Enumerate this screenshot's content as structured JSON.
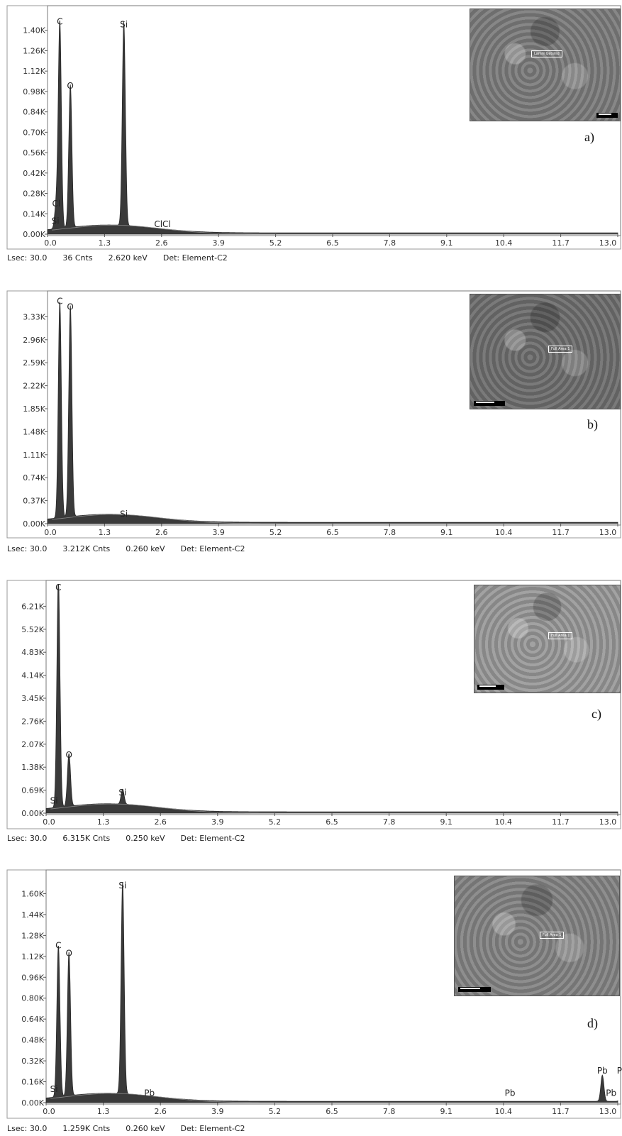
{
  "chart_data": [
    {
      "type": "line",
      "panel_label": "a)",
      "ylim": [
        0,
        1.54
      ],
      "y_ticks": [
        "0.00K",
        "0.14K",
        "0.28K",
        "0.42K",
        "0.56K",
        "0.70K",
        "0.84K",
        "0.98K",
        "1.12K",
        "1.26K",
        "1.40K"
      ],
      "x_ticks": [
        "0.0",
        "1.3",
        "2.6",
        "3.9",
        "5.2",
        "6.5",
        "7.8",
        "9.1",
        "10.4",
        "11.7",
        "13.0"
      ],
      "xlim": [
        0,
        13
      ],
      "peaks": [
        {
          "label": "Si",
          "x": 0.18,
          "y": 0.05
        },
        {
          "label": "Cl",
          "x": 0.2,
          "y": 0.17
        },
        {
          "label": "C",
          "x": 0.28,
          "y": 1.42
        },
        {
          "label": "O",
          "x": 0.52,
          "y": 0.98
        },
        {
          "label": "Si",
          "x": 1.74,
          "y": 1.4
        },
        {
          "label": "ClCl",
          "x": 2.62,
          "y": 0.03
        }
      ],
      "status": {
        "lsec": "Lsec: 30.0",
        "cnts": "36 Cnts",
        "kev": "2.620 keV",
        "det": "Det: Element-C2"
      },
      "inset": {
        "tag": "Lamm betsind",
        "bg": "#7d7d7d"
      }
    },
    {
      "type": "line",
      "panel_label": "b)",
      "ylim": [
        0,
        3.66
      ],
      "y_ticks": [
        "0.00K",
        "0.37K",
        "0.74K",
        "1.11K",
        "1.48K",
        "1.85K",
        "2.22K",
        "2.59K",
        "2.96K",
        "3.33K"
      ],
      "x_ticks": [
        "0.0",
        "1.3",
        "2.6",
        "3.9",
        "5.2",
        "6.5",
        "7.8",
        "9.1",
        "10.4",
        "11.7",
        "13.0"
      ],
      "xlim": [
        0,
        13
      ],
      "peaks": [
        {
          "label": "C",
          "x": 0.28,
          "y": 3.45
        },
        {
          "label": "O",
          "x": 0.52,
          "y": 3.36
        },
        {
          "label": "Si",
          "x": 1.74,
          "y": 0.06
        }
      ],
      "status": {
        "lsec": "Lsec: 30.0",
        "cnts": "3.212K Cnts",
        "kev": "0.260 keV",
        "det": "Det: Element-C2"
      },
      "inset": {
        "tag": "Full Area 1",
        "bg": "#6f6f6f"
      }
    },
    {
      "type": "line",
      "panel_label": "c)",
      "ylim": [
        0,
        6.9
      ],
      "y_ticks": [
        "0.00K",
        "0.69K",
        "1.38K",
        "2.07K",
        "2.76K",
        "3.45K",
        "4.14K",
        "4.83K",
        "5.52K",
        "6.21K"
      ],
      "x_ticks": [
        "0.0",
        "1.3",
        "2.6",
        "3.9",
        "5.2",
        "6.5",
        "7.8",
        "9.1",
        "10.4",
        "11.7",
        "13.0"
      ],
      "xlim": [
        0,
        13
      ],
      "peaks": [
        {
          "label": "Si",
          "x": 0.18,
          "y": 0.2
        },
        {
          "label": "C",
          "x": 0.28,
          "y": 6.9
        },
        {
          "label": "O",
          "x": 0.52,
          "y": 1.58
        },
        {
          "label": "Si",
          "x": 1.74,
          "y": 0.45
        }
      ],
      "status": {
        "lsec": "Lsec: 30.0",
        "cnts": "6.315K Cnts",
        "kev": "0.250 keV",
        "det": "Det: Element-C2"
      },
      "inset": {
        "tag": "Full Area 1",
        "bg": "#9a9a9a"
      }
    },
    {
      "type": "line",
      "panel_label": "d)",
      "ylim": [
        0,
        1.76
      ],
      "y_ticks": [
        "0.00K",
        "0.16K",
        "0.32K",
        "0.48K",
        "0.64K",
        "0.80K",
        "0.96K",
        "1.12K",
        "1.28K",
        "1.44K",
        "1.60K"
      ],
      "x_ticks": [
        "0.0",
        "1.3",
        "2.6",
        "3.9",
        "5.2",
        "6.5",
        "7.8",
        "9.1",
        "10.4",
        "11.7",
        "13.0"
      ],
      "xlim": [
        0,
        13
      ],
      "peaks": [
        {
          "label": "Si",
          "x": 0.18,
          "y": 0.06
        },
        {
          "label": "C",
          "x": 0.28,
          "y": 1.16
        },
        {
          "label": "O",
          "x": 0.52,
          "y": 1.1
        },
        {
          "label": "Si",
          "x": 1.74,
          "y": 1.62
        },
        {
          "label": "Pb",
          "x": 2.35,
          "y": 0.03
        },
        {
          "label": "Pb",
          "x": 10.55,
          "y": 0.03
        },
        {
          "label": "Pb",
          "x": 12.65,
          "y": 0.2
        },
        {
          "label": "Pb",
          "x": 12.85,
          "y": 0.03
        },
        {
          "label": "Pb",
          "x": 13.1,
          "y": 0.2
        },
        {
          "label": "Pb",
          "x": 13.3,
          "y": 0.03
        }
      ],
      "status": {
        "lsec": "Lsec: 30.0",
        "cnts": "1.259K Cnts",
        "kev": "0.260 keV",
        "det": "Det: Element-C2"
      },
      "inset": {
        "tag": "Full Area 1",
        "bg": "#858585"
      }
    }
  ]
}
